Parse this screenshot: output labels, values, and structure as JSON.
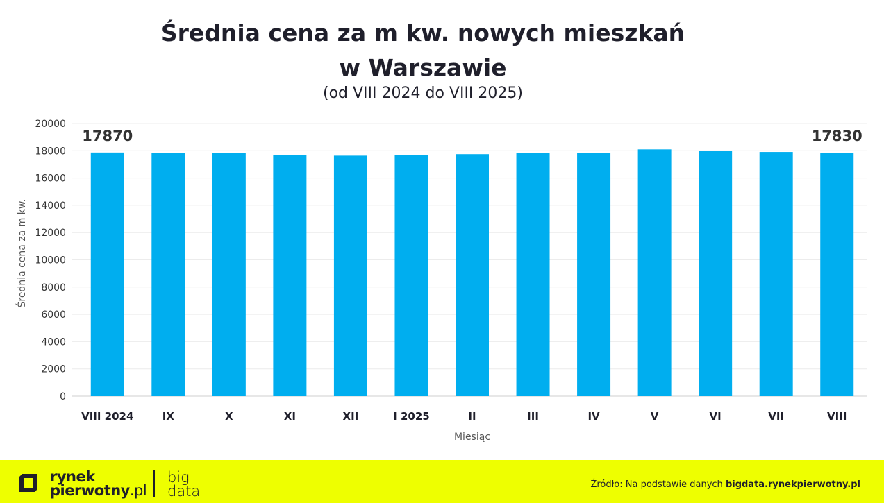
{
  "chart_data": {
    "type": "bar",
    "title_line1": "Średnia cena za m kw. nowych mieszkań",
    "title_line2": "w Warszawie",
    "subtitle": "(od VIII 2024 do VIII 2025)",
    "xlabel": "Miesiąc",
    "ylabel": "Średnia cena za m kw.",
    "ylim": [
      0,
      20000
    ],
    "yticks": [
      0,
      2000,
      4000,
      6000,
      8000,
      10000,
      12000,
      14000,
      16000,
      18000,
      20000
    ],
    "grid": true,
    "categories": [
      "VIII 2024",
      "IX",
      "X",
      "XI",
      "XII",
      "I 2025",
      "II",
      "III",
      "IV",
      "V",
      "VI",
      "VII",
      "VIII"
    ],
    "values": [
      17870,
      17850,
      17815,
      17710,
      17640,
      17680,
      17750,
      17860,
      17860,
      18100,
      18010,
      17910,
      17830
    ],
    "data_labels": [
      {
        "index": 0,
        "text": "17870"
      },
      {
        "index": 12,
        "text": "17830"
      }
    ],
    "bar_color": "#00aeef"
  },
  "footer": {
    "logo_line1": "rynek",
    "logo_line2": "pierwotny",
    "logo_suffix": ".pl",
    "bigdata_line1": "big",
    "bigdata_line2": "data",
    "source_prefix": "Źródło: Na podstawie danych ",
    "source_site": "bigdata.rynekpierwotny.pl",
    "background": "#eeff00"
  }
}
